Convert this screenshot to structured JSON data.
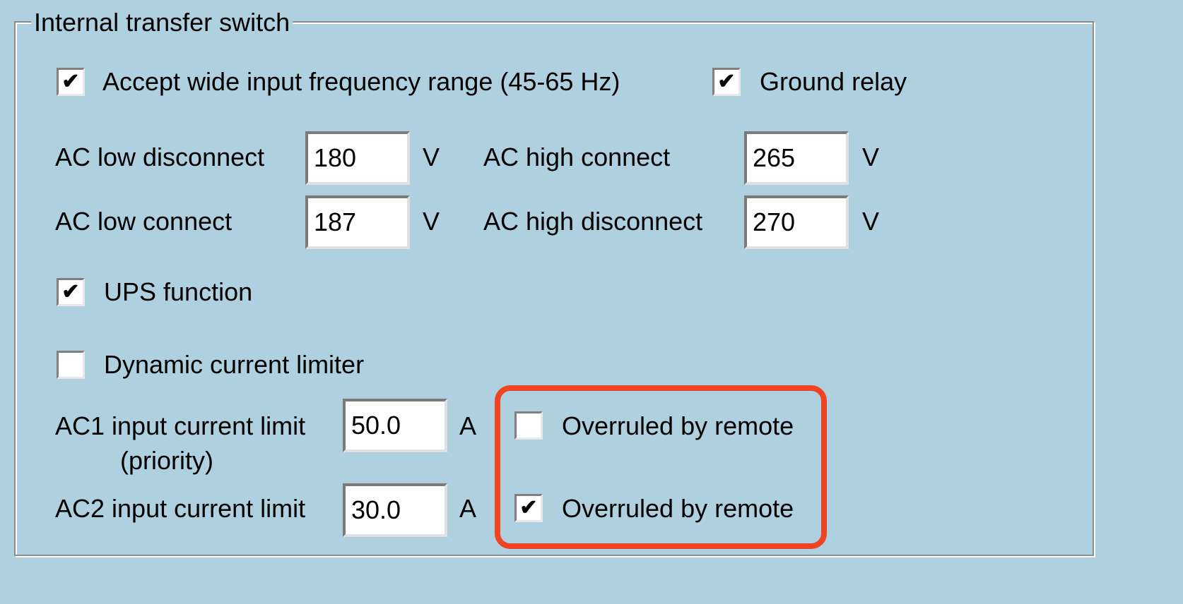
{
  "group": {
    "title": "Internal transfer switch"
  },
  "options": {
    "wide_freq": {
      "label": "Accept wide input frequency range (45-65 Hz)",
      "checked": true
    },
    "ground_relay": {
      "label": "Ground relay",
      "checked": true
    },
    "ups_function": {
      "label": "UPS function",
      "checked": true
    },
    "dynamic_limiter": {
      "label": "Dynamic current limiter",
      "checked": false
    }
  },
  "voltage": {
    "ac_low_disconnect": {
      "label": "AC low disconnect",
      "value": "180",
      "unit": "V"
    },
    "ac_low_connect": {
      "label": "AC low connect",
      "value": "187",
      "unit": "V"
    },
    "ac_high_connect": {
      "label": "AC high connect",
      "value": "265",
      "unit": "V"
    },
    "ac_high_disconnect": {
      "label": "AC high disconnect",
      "value": "270",
      "unit": "V"
    }
  },
  "current": {
    "ac1": {
      "label": "AC1 input current limit",
      "sublabel": "(priority)",
      "value": "50.0",
      "unit": "A",
      "overrule_label": "Overruled by remote",
      "overrule_checked": false
    },
    "ac2": {
      "label": "AC2 input current limit",
      "value": "30.0",
      "unit": "A",
      "overrule_label": "Overruled by remote",
      "overrule_checked": true
    }
  },
  "check_mark": "✔",
  "colors": {
    "background": "#afd0df",
    "highlight": "#ee4422"
  }
}
